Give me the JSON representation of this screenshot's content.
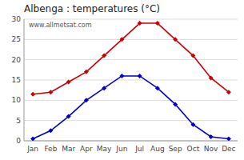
{
  "chart_data": {
    "type": "line",
    "title": "Albenga : temperatures (°C)",
    "categories": [
      "Jan",
      "Feb",
      "Mar",
      "Apr",
      "May",
      "Jun",
      "Jul",
      "Aug",
      "Sep",
      "Oct",
      "Nov",
      "Dec"
    ],
    "series": [
      {
        "color": "#cc0000",
        "marker": "diamond",
        "values": [
          11.5,
          12.0,
          14.5,
          17.0,
          21.0,
          25.0,
          29.0,
          29.0,
          25.0,
          21.0,
          15.5,
          12.0
        ]
      },
      {
        "color": "#0000cc",
        "marker": "diamond",
        "values": [
          0.5,
          2.5,
          6.0,
          10.0,
          13.0,
          16.0,
          16.0,
          13.0,
          9.0,
          4.0,
          1.0,
          0.5
        ]
      }
    ],
    "ylim": [
      0,
      30
    ],
    "yticks": [
      0,
      5,
      10,
      15,
      20,
      25,
      30
    ],
    "grid": true,
    "annotations": [
      "www.allmetsat.com"
    ]
  }
}
